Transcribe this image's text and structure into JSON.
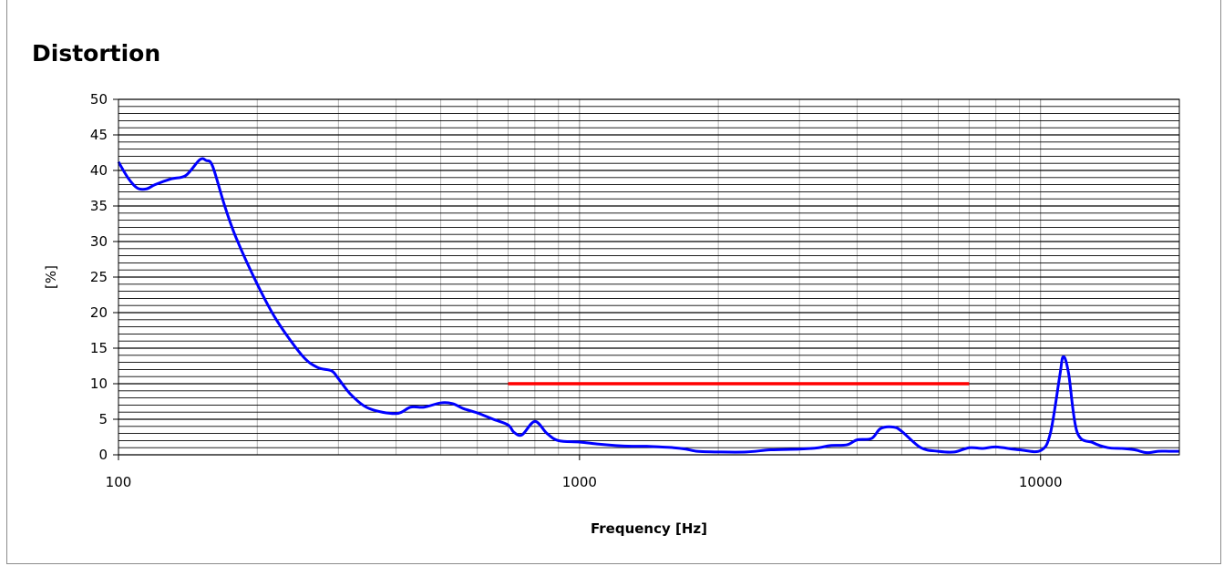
{
  "chart_data": {
    "type": "line",
    "title": "Distortion",
    "xlabel": "Frequency [Hz]",
    "ylabel": "[%]",
    "x_scale": "log",
    "xlim": [
      100,
      20000
    ],
    "ylim": [
      0,
      50
    ],
    "x_ticks": [
      100,
      1000,
      10000
    ],
    "x_tick_labels": [
      "100",
      "1000",
      "10000"
    ],
    "y_ticks": [
      0,
      5,
      10,
      15,
      20,
      25,
      30,
      35,
      40,
      45,
      50
    ],
    "y_tick_labels": [
      "0",
      "5",
      "10",
      "15",
      "20",
      "25",
      "30",
      "35",
      "40",
      "45",
      "50"
    ],
    "grid": true,
    "legend": "none",
    "series": [
      {
        "color": "#0000ff",
        "x": [
          100,
          105,
          110,
          115,
          120,
          130,
          140,
          150,
          155,
          160,
          170,
          180,
          200,
          220,
          250,
          270,
          290,
          300,
          320,
          350,
          400,
          430,
          460,
          500,
          530,
          560,
          600,
          650,
          700,
          720,
          750,
          800,
          850,
          900,
          1000,
          1100,
          1200,
          1300,
          1400,
          1500,
          1600,
          1700,
          1800,
          2000,
          2300,
          2600,
          3000,
          3300,
          3500,
          3800,
          4000,
          4300,
          4500,
          4800,
          5000,
          5500,
          6000,
          6500,
          7000,
          7500,
          8000,
          9000,
          10000,
          10500,
          11000,
          11200,
          11500,
          12000,
          13000,
          14000,
          15000,
          16000,
          17000,
          18000,
          19000,
          20000
        ],
        "y": [
          41.2,
          38.9,
          37.5,
          37.4,
          38.0,
          38.8,
          39.3,
          41.5,
          41.4,
          40.6,
          35.0,
          30.5,
          24.0,
          19.0,
          14.0,
          12.3,
          11.8,
          10.7,
          8.4,
          6.5,
          5.8,
          6.7,
          6.7,
          7.3,
          7.2,
          6.5,
          5.9,
          5.0,
          4.2,
          3.2,
          2.8,
          4.7,
          3.0,
          2.0,
          1.8,
          1.5,
          1.3,
          1.2,
          1.2,
          1.1,
          1.0,
          0.8,
          0.5,
          0.4,
          0.4,
          0.7,
          0.8,
          1.0,
          1.3,
          1.4,
          2.1,
          2.3,
          3.7,
          3.9,
          3.3,
          1.0,
          0.5,
          0.4,
          1.0,
          0.9,
          1.1,
          0.7,
          0.6,
          3.0,
          11.0,
          13.8,
          11.5,
          3.2,
          1.7,
          1.0,
          0.9,
          0.7,
          0.3,
          0.5,
          0.5,
          0.5
        ]
      },
      {
        "color": "#ff0000",
        "x": [
          700,
          7000
        ],
        "y": [
          10,
          10
        ]
      }
    ]
  }
}
